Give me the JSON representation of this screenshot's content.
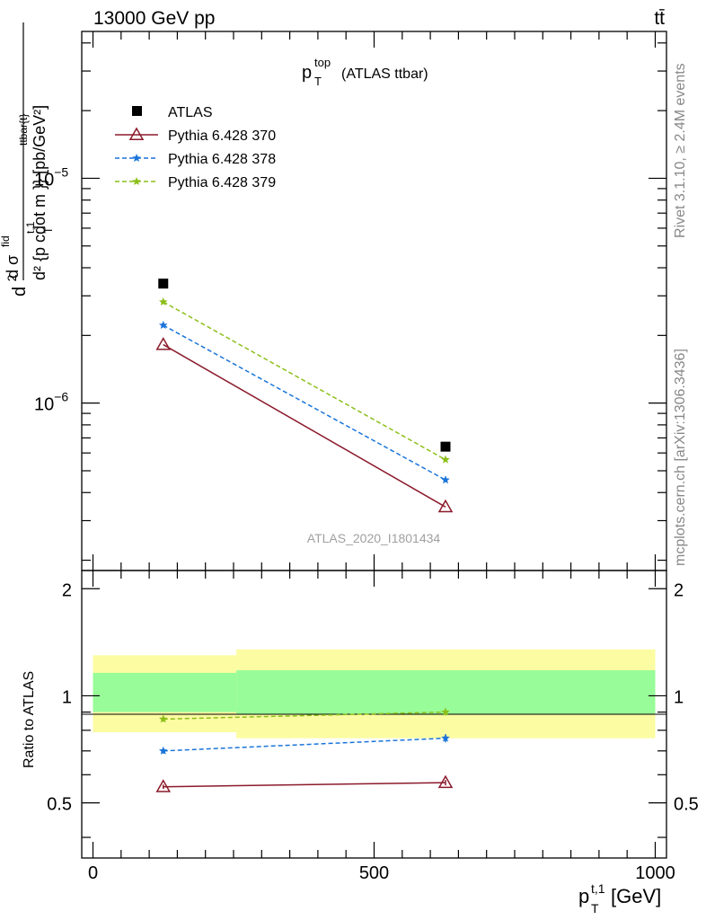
{
  "header": {
    "energy_label": "13000 GeV pp",
    "process_label": "tt̄"
  },
  "side_labels": {
    "rivet": "Rivet 3.1.10, ≥ 2.4M events",
    "source": "mcplots.cern.ch [arXiv:1306.3436]"
  },
  "chart_data": [
    {
      "type": "line",
      "panel": "main",
      "title_main": "p",
      "title_sup": "top",
      "title_sub": "T",
      "title_rest": "(ATLAS ttbar)",
      "watermark": "ATLAS_2020_I1801434",
      "ylabel": "d²σ^fid / d² {p_T^{t,1} cdot m^{ttbar{t}}} [pb/GeV²]",
      "yscale": "log",
      "xlim": [
        -20,
        1020
      ],
      "ylim": [
        1.8e-07,
        4.5e-05
      ],
      "y_tick_labels": [
        {
          "value": 1e-05,
          "base": "10",
          "exp": "−5"
        },
        {
          "value": 1e-06,
          "base": "10",
          "exp": "−6"
        }
      ],
      "legend_position": "top-left",
      "x": [
        125,
        627
      ],
      "series": [
        {
          "name": "ATLAS",
          "style": "data",
          "color": "#000000",
          "values": [
            3.4e-06,
            6.4e-07
          ]
        },
        {
          "name": "Pythia 6.428 370",
          "style": "triangle",
          "color": "#8b1a2b",
          "values": [
            1.82e-06,
            3.45e-07
          ]
        },
        {
          "name": "Pythia 6.428 378",
          "style": "star-dashed",
          "color": "#1a74d9",
          "values": [
            2.22e-06,
            4.55e-07
          ]
        },
        {
          "name": "Pythia 6.428 379",
          "style": "star-dashed",
          "color": "#8cbf1a",
          "values": [
            2.82e-06,
            5.6e-07
          ]
        }
      ]
    },
    {
      "type": "line",
      "panel": "ratio",
      "ylabel": "Ratio to ATLAS",
      "xlabel": "p_T^{t,1} [GeV]",
      "xlim": [
        -20,
        1020
      ],
      "ylim": [
        0.35,
        2.25
      ],
      "x_ticks": [
        0,
        500,
        1000
      ],
      "y_ticks": [
        0.5,
        1,
        2
      ],
      "x": [
        125,
        627
      ],
      "bands": [
        {
          "x0": 0,
          "x1": 255,
          "green": [
            0.9,
            1.16
          ],
          "yellow": [
            0.79,
            1.3
          ]
        },
        {
          "x0": 255,
          "x1": 1000,
          "green": [
            0.885,
            1.18
          ],
          "yellow": [
            0.76,
            1.35
          ]
        }
      ],
      "band_colors": {
        "green": "#98fc98",
        "yellow": "#fcfca2"
      },
      "series": [
        {
          "name": "Pythia 6.428 370",
          "color": "#8b1a2b",
          "values": [
            0.555,
            0.57
          ],
          "err": [
            0.008,
            0.01
          ]
        },
        {
          "name": "Pythia 6.428 378",
          "color": "#1a74d9",
          "values": [
            0.7,
            0.76
          ],
          "err": [
            0.012,
            0.02
          ]
        },
        {
          "name": "Pythia 6.428 379",
          "color": "#8cbf1a",
          "values": [
            0.86,
            0.9
          ],
          "err": [
            0.014,
            0.02
          ]
        }
      ]
    }
  ]
}
